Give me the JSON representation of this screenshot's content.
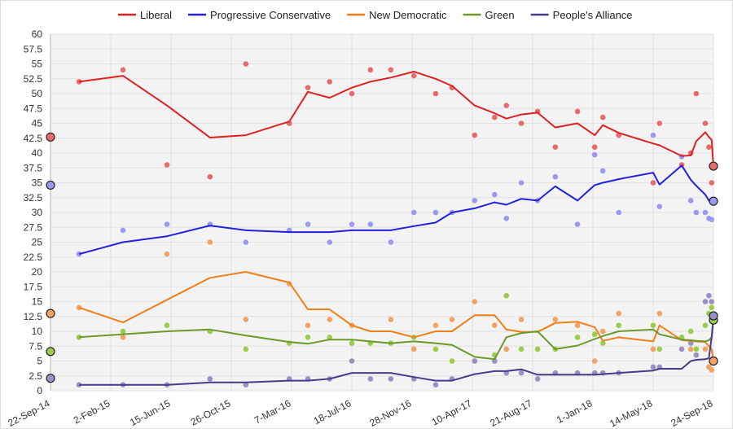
{
  "chart_data": {
    "type": "line",
    "title": "",
    "xlabel": "",
    "ylabel": "",
    "ylim": [
      0,
      60
    ],
    "xlim": [
      "2014-09-22",
      "2018-09-24"
    ],
    "grid": true,
    "legend_position": "top",
    "y_ticks": [
      "0",
      "2.5",
      "5",
      "7.5",
      "10",
      "12.5",
      "15",
      "17.5",
      "20",
      "22.5",
      "25",
      "27.5",
      "30",
      "32.5",
      "35",
      "37.5",
      "40",
      "42.5",
      "45",
      "47.5",
      "50",
      "52.5",
      "55",
      "57.5",
      "60"
    ],
    "x_ticks": [
      {
        "label": "22-Sep-14",
        "date": "2014-09-22"
      },
      {
        "label": "2-Feb-15",
        "date": "2015-02-02"
      },
      {
        "label": "15-Jun-15",
        "date": "2015-06-15"
      },
      {
        "label": "26-Oct-15",
        "date": "2015-10-26"
      },
      {
        "label": "7-Mar-16",
        "date": "2016-03-07"
      },
      {
        "label": "18-Jul-16",
        "date": "2016-07-18"
      },
      {
        "label": "28-Nov-16",
        "date": "2016-11-28"
      },
      {
        "label": "10-Apr-17",
        "date": "2017-04-10"
      },
      {
        "label": "21-Aug-17",
        "date": "2017-08-21"
      },
      {
        "label": "1-Jan-18",
        "date": "2018-01-01"
      },
      {
        "label": "14-May-18",
        "date": "2018-05-14"
      },
      {
        "label": "24-Sep-18",
        "date": "2018-09-24"
      }
    ],
    "dates": [
      "2014-11-24",
      "2015-03-01",
      "2015-06-06",
      "2015-09-09",
      "2015-11-27",
      "2016-03-02",
      "2016-04-12",
      "2016-05-30",
      "2016-07-18",
      "2016-08-28",
      "2016-10-12",
      "2016-12-02",
      "2017-01-19",
      "2017-02-24",
      "2017-04-15",
      "2017-05-29",
      "2017-06-24",
      "2017-07-27",
      "2017-09-01",
      "2017-10-10",
      "2017-11-28",
      "2018-01-05",
      "2018-01-23",
      "2018-02-27",
      "2018-05-14",
      "2018-05-28",
      "2018-07-16",
      "2018-08-05",
      "2018-08-17",
      "2018-09-06",
      "2018-09-14",
      "2018-09-20",
      "2018-09-24"
    ],
    "series": [
      {
        "name": "Liberal",
        "color": "#dd2222",
        "dot_color": "#e86a6a",
        "trend": [
          52,
          53,
          48,
          42.6,
          43,
          45.3,
          50.3,
          49.3,
          51,
          52,
          52.7,
          53.7,
          52.5,
          51.3,
          48,
          46.7,
          45.8,
          46.5,
          46.8,
          44.3,
          45,
          43,
          44.7,
          43.4,
          41.6,
          41.3,
          39.5,
          39.6,
          42,
          43.5,
          42.7,
          42.2,
          37.8
        ],
        "polls": [
          52,
          54,
          38,
          36,
          55,
          45,
          51,
          52,
          50,
          54,
          54,
          53,
          50,
          51,
          43,
          46,
          48,
          45,
          47,
          41,
          47,
          41,
          46,
          43,
          35,
          45,
          38,
          40,
          50,
          45,
          41,
          35,
          null
        ],
        "election_2014": 42.7,
        "election_2018": 37.8
      },
      {
        "name": "Progressive Conservative",
        "color": "#2222dd",
        "dot_color": "#9a9af0",
        "trend": [
          23,
          25,
          26,
          27.8,
          27,
          26.7,
          26.7,
          26.7,
          27,
          27,
          27,
          27.7,
          28.3,
          30,
          30.7,
          31.7,
          31.3,
          32.3,
          32,
          34.4,
          32,
          34.6,
          35,
          35.6,
          36.7,
          34.7,
          37.9,
          35.5,
          34.5,
          33,
          32,
          31.5,
          31.8
        ],
        "polls": [
          23,
          27,
          28,
          28,
          25,
          27,
          28,
          25,
          28,
          28,
          25,
          30,
          30,
          30,
          32,
          33,
          29,
          35,
          32,
          36,
          28,
          39.7,
          37,
          30,
          43,
          31,
          39.4,
          32,
          30,
          30,
          29,
          28.8,
          null
        ],
        "election_2014": 34.6,
        "election_2018": 31.9
      },
      {
        "name": "New Democratic",
        "color": "#ee7f1b",
        "dot_color": "#f2a263",
        "trend": [
          14,
          11.5,
          15.3,
          19,
          20,
          18.2,
          13.7,
          13.7,
          11,
          10,
          10,
          9,
          10,
          10,
          12.7,
          12.7,
          10.3,
          9.9,
          9.9,
          11.4,
          11.6,
          10.7,
          8.4,
          9,
          8.3,
          11,
          8.5,
          8.4,
          8.3,
          8.2,
          7.5,
          7,
          5
        ],
        "polls": [
          14,
          9,
          23,
          25,
          12,
          18,
          11,
          12,
          11,
          8,
          12,
          7,
          11,
          12,
          15,
          11,
          7,
          12,
          7,
          12,
          11,
          5,
          10,
          13,
          7,
          13,
          9,
          7,
          6,
          7,
          4,
          3.5,
          null
        ],
        "election_2014": 13.0,
        "election_2018": 5.0
      },
      {
        "name": "Green",
        "color": "#6b9a2a",
        "dot_color": "#9acd4a",
        "trend": [
          9,
          9.5,
          10,
          10.3,
          9.3,
          8.2,
          7.9,
          8.6,
          8.6,
          8.3,
          8,
          8.3,
          8,
          7.7,
          5.7,
          5.3,
          9,
          9.7,
          10,
          7,
          7.6,
          8.7,
          9.2,
          10,
          10.3,
          9.5,
          8.6,
          8.5,
          8.4,
          8.3,
          8.5,
          9,
          11.8
        ],
        "polls": [
          9,
          10,
          11,
          10,
          7,
          8,
          9,
          9,
          8,
          8,
          8,
          9,
          7,
          5,
          5,
          6,
          16,
          7,
          7,
          7,
          9,
          9.5,
          8,
          11,
          11,
          7,
          9,
          10,
          7,
          11,
          13,
          14,
          null
        ],
        "election_2014": 6.6,
        "election_2018": 11.9
      },
      {
        "name": "People's Alliance",
        "color": "#4b3a8a",
        "dot_color": "#9a90c8",
        "trend": [
          1,
          1,
          1,
          1.4,
          1.4,
          1.7,
          1.7,
          2,
          3,
          3,
          3,
          2.3,
          1.7,
          1.7,
          2.8,
          3.3,
          3.3,
          3.6,
          2.7,
          2.7,
          2.7,
          2.7,
          2.8,
          3,
          3.4,
          3.7,
          3.7,
          5,
          5.2,
          5.3,
          5.5,
          9,
          12.6
        ],
        "polls": [
          1,
          1,
          1,
          2,
          1,
          2,
          2,
          2,
          5,
          2,
          2,
          2,
          1,
          2,
          5,
          5,
          3,
          3,
          2,
          3,
          3,
          3,
          3,
          3,
          4,
          4,
          7,
          8,
          6,
          15,
          16,
          15,
          null
        ],
        "election_2014": 2.1,
        "election_2018": 12.6
      }
    ]
  }
}
